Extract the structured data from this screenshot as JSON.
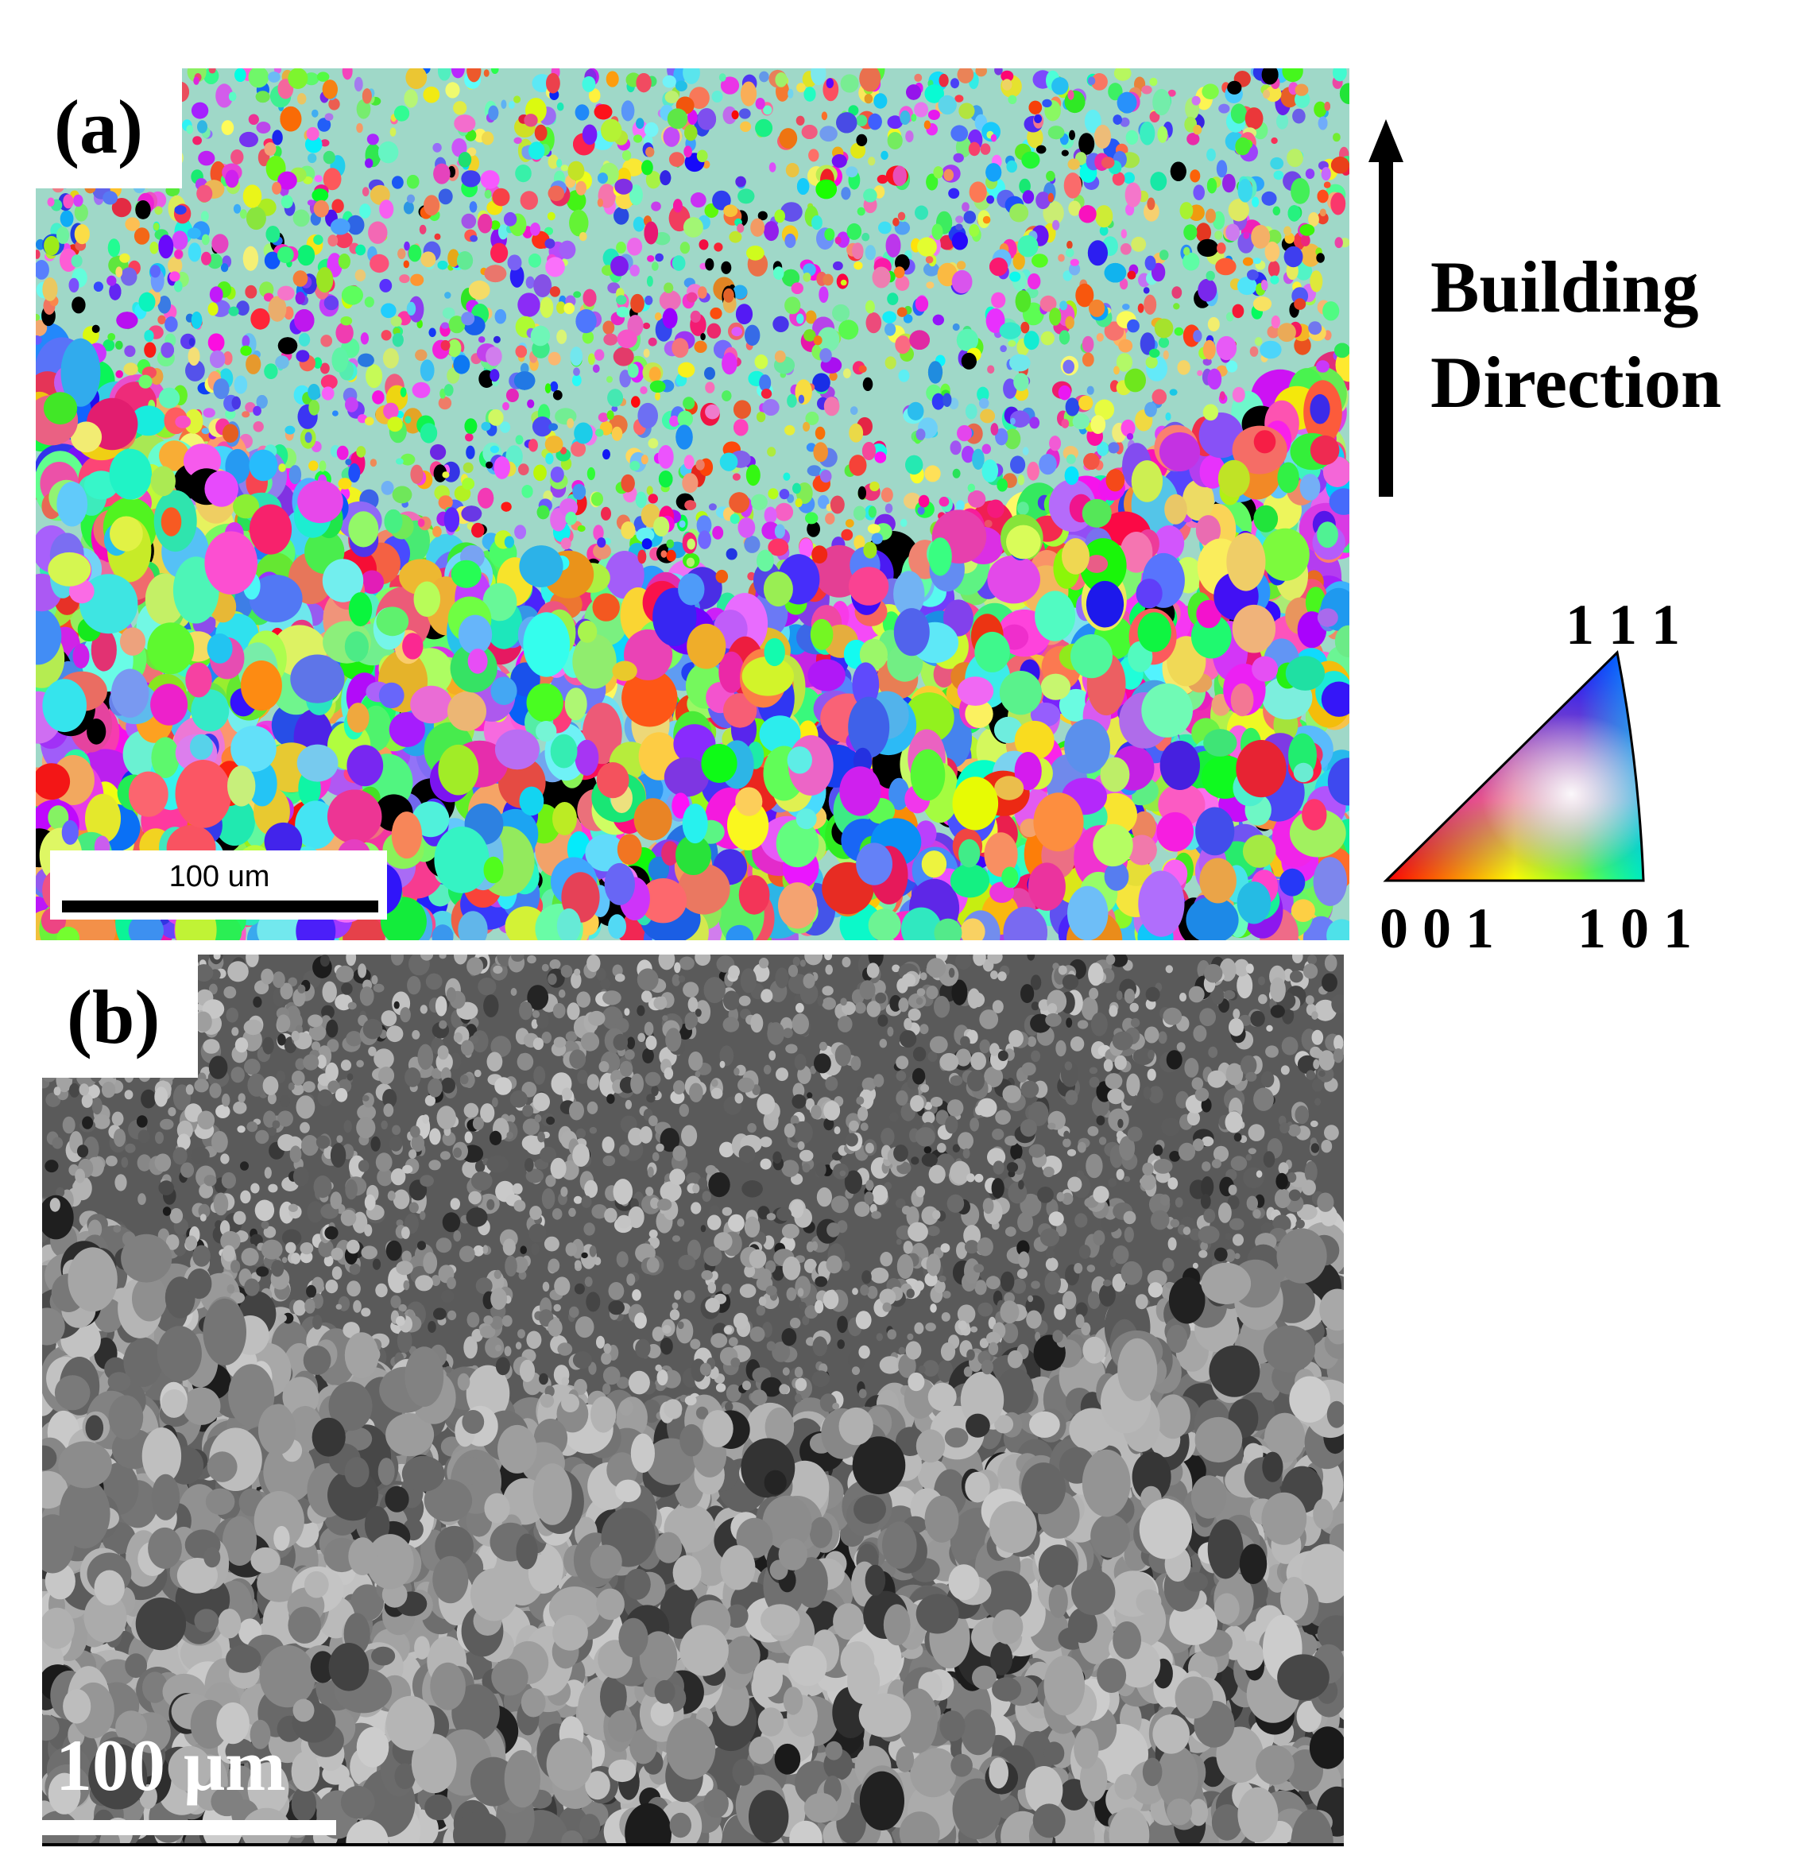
{
  "panels": [
    {
      "label": "(a)",
      "scale_bar": "100 um"
    },
    {
      "label": "(b)",
      "scale_bar": "100 μm"
    }
  ],
  "building_direction": [
    "Building",
    "Direction"
  ],
  "ipf_key": {
    "top": "1 1 1",
    "left": "0 0 1",
    "right": "1 0 1"
  }
}
